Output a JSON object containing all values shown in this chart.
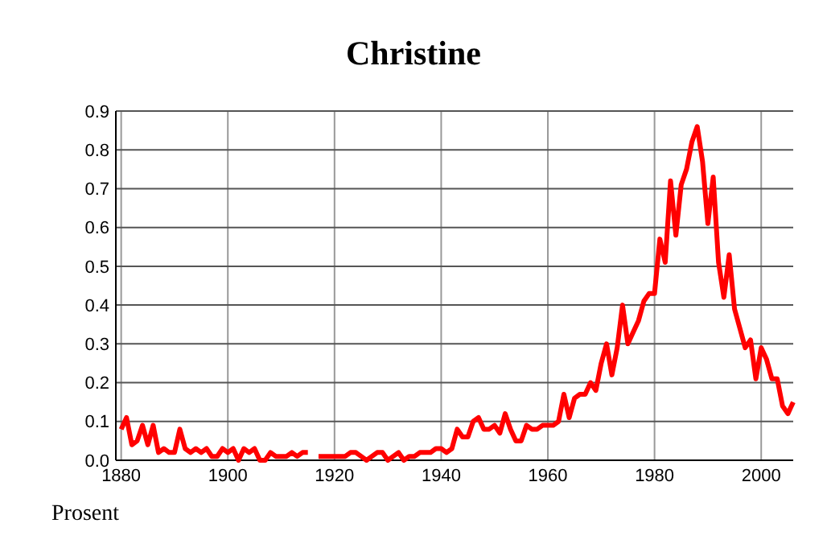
{
  "chart_data": {
    "type": "line",
    "title": "Christine",
    "ylabel": "Prosent",
    "x": [
      1880,
      1881,
      1882,
      1883,
      1884,
      1885,
      1886,
      1887,
      1888,
      1889,
      1890,
      1891,
      1892,
      1893,
      1894,
      1895,
      1896,
      1897,
      1898,
      1899,
      1900,
      1901,
      1902,
      1903,
      1904,
      1905,
      1906,
      1907,
      1908,
      1909,
      1910,
      1911,
      1912,
      1913,
      1914,
      1915,
      1916,
      1917,
      1918,
      1919,
      1920,
      1921,
      1922,
      1923,
      1924,
      1925,
      1926,
      1927,
      1928,
      1929,
      1930,
      1931,
      1932,
      1933,
      1934,
      1935,
      1936,
      1937,
      1938,
      1939,
      1940,
      1941,
      1942,
      1943,
      1944,
      1945,
      1946,
      1947,
      1948,
      1949,
      1950,
      1951,
      1952,
      1953,
      1954,
      1955,
      1956,
      1957,
      1958,
      1959,
      1960,
      1961,
      1962,
      1963,
      1964,
      1965,
      1966,
      1967,
      1968,
      1969,
      1970,
      1971,
      1972,
      1973,
      1974,
      1975,
      1976,
      1977,
      1978,
      1979,
      1980,
      1981,
      1982,
      1983,
      1984,
      1985,
      1986,
      1987,
      1988,
      1989,
      1990,
      1991,
      1992,
      1993,
      1994,
      1995,
      1996,
      1997,
      1998,
      1999,
      2000,
      2001,
      2002,
      2003,
      2004,
      2005,
      2006
    ],
    "series": [
      {
        "color": "#ff0000",
        "values": [
          0.08,
          0.11,
          0.04,
          0.05,
          0.09,
          0.04,
          0.09,
          0.02,
          0.03,
          0.02,
          0.02,
          0.08,
          0.03,
          0.02,
          0.03,
          0.02,
          0.03,
          0.01,
          0.01,
          0.03,
          0.02,
          0.03,
          0.0,
          0.03,
          0.02,
          0.03,
          0.0,
          0.0,
          0.02,
          0.01,
          0.01,
          0.01,
          0.02,
          0.01,
          0.02,
          0.02,
          null,
          0.01,
          0.01,
          0.01,
          0.01,
          0.01,
          0.01,
          0.02,
          0.02,
          0.01,
          0.0,
          0.01,
          0.02,
          0.02,
          0.0,
          0.01,
          0.02,
          0.0,
          0.01,
          0.01,
          0.02,
          0.02,
          0.02,
          0.03,
          0.03,
          0.02,
          0.03,
          0.08,
          0.06,
          0.06,
          0.1,
          0.11,
          0.08,
          0.08,
          0.09,
          0.07,
          0.12,
          0.08,
          0.05,
          0.05,
          0.09,
          0.08,
          0.08,
          0.09,
          0.09,
          0.09,
          0.1,
          0.17,
          0.11,
          0.16,
          0.17,
          0.17,
          0.2,
          0.18,
          0.25,
          0.3,
          0.22,
          0.29,
          0.4,
          0.3,
          0.33,
          0.36,
          0.41,
          0.43,
          0.43,
          0.57,
          0.51,
          0.72,
          0.58,
          0.71,
          0.75,
          0.82,
          0.86,
          0.77,
          0.61,
          0.73,
          0.51,
          0.42,
          0.53,
          0.39,
          0.34,
          0.29,
          0.31,
          0.21,
          0.29,
          0.26,
          0.21,
          0.21,
          0.14,
          0.12,
          0.15
        ]
      }
    ],
    "xlim": [
      1879,
      2006
    ],
    "xticks": [
      1880,
      1900,
      1920,
      1940,
      1960,
      1980,
      2000
    ],
    "ylim": [
      0,
      0.9
    ],
    "yticks": [
      {
        "value": 0,
        "label": "0.0"
      },
      0.1,
      0.2,
      0.3,
      0.4,
      0.5,
      0.6,
      0.7,
      0.8,
      0.9
    ],
    "grid": true
  }
}
